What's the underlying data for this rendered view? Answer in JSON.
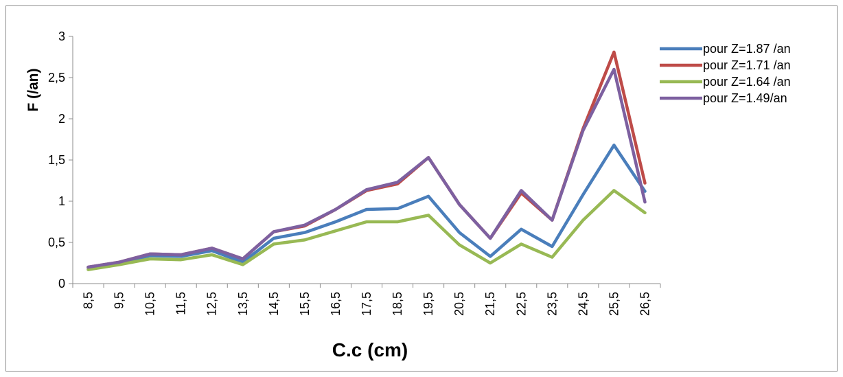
{
  "chart_data": {
    "type": "line",
    "xlabel": "C.c (cm)",
    "ylabel": "F (/an)",
    "ylim": [
      0,
      3
    ],
    "yticks": [
      "0",
      "0,5",
      "1",
      "1,5",
      "2",
      "2,5",
      "3"
    ],
    "grid": false,
    "legend_position": "right",
    "categories": [
      "8,5",
      "9,5",
      "10,5",
      "11,5",
      "12,5",
      "13,5",
      "14,5",
      "15,5",
      "16,5",
      "17,5",
      "18,5",
      "19,5",
      "20,5",
      "21,5",
      "22,5",
      "23,5",
      "24,5",
      "25,5",
      "26,5"
    ],
    "series": [
      {
        "name": "pour Z=1.87 /an",
        "color": "#4a7ebb",
        "values": [
          0.19,
          0.25,
          0.34,
          0.33,
          0.4,
          0.26,
          0.55,
          0.62,
          0.75,
          0.9,
          0.91,
          1.06,
          0.62,
          0.33,
          0.66,
          0.45,
          1.08,
          1.68,
          1.12
        ]
      },
      {
        "name": "pour Z=1.71 /an",
        "color": "#be4b48",
        "values": [
          0.2,
          0.26,
          0.36,
          0.35,
          0.43,
          0.3,
          0.63,
          0.7,
          0.9,
          1.13,
          1.21,
          1.53,
          0.96,
          0.55,
          1.1,
          0.77,
          1.88,
          2.81,
          1.22
        ]
      },
      {
        "name": "pour Z=1.64 /an",
        "color": "#98b954",
        "values": [
          0.17,
          0.23,
          0.3,
          0.29,
          0.35,
          0.23,
          0.48,
          0.53,
          0.64,
          0.75,
          0.75,
          0.83,
          0.47,
          0.25,
          0.48,
          0.32,
          0.77,
          1.13,
          0.86
        ]
      },
      {
        "name": "pour Z=1.49/an",
        "color": "#7d60a0",
        "values": [
          0.2,
          0.26,
          0.36,
          0.35,
          0.43,
          0.3,
          0.63,
          0.71,
          0.9,
          1.14,
          1.23,
          1.53,
          0.96,
          0.55,
          1.13,
          0.77,
          1.86,
          2.6,
          0.99
        ]
      }
    ]
  }
}
